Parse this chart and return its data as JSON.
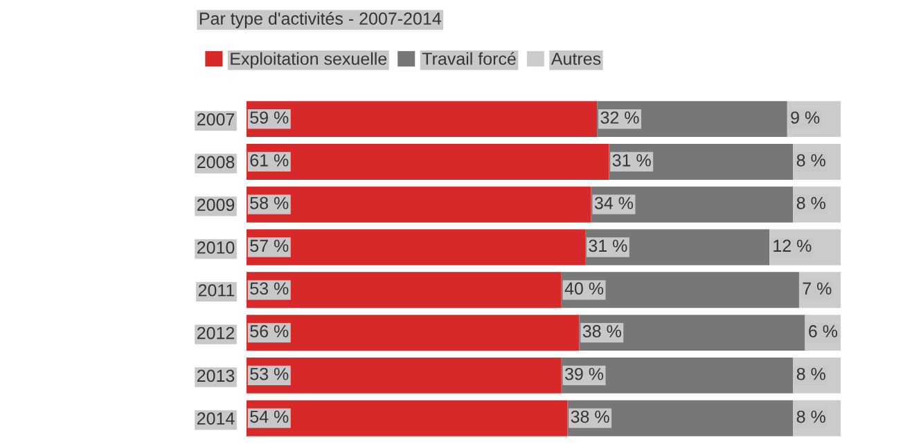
{
  "chart_data": {
    "type": "bar",
    "orientation": "horizontal",
    "stacked": true,
    "title": "Par type d'activités - 2007-2014",
    "categories": [
      "2007",
      "2008",
      "2009",
      "2010",
      "2011",
      "2012",
      "2013",
      "2014"
    ],
    "series": [
      {
        "name": "Exploitation sexuelle",
        "color": "#d7282a",
        "values": [
          59,
          61,
          58,
          57,
          53,
          56,
          53,
          54
        ],
        "value_labels": [
          "59 %",
          "61 %",
          "58 %",
          "57 %",
          "53 %",
          "56 %",
          "53 %",
          "54 %"
        ]
      },
      {
        "name": "Travail forcé",
        "color": "#777777",
        "values": [
          32,
          31,
          34,
          31,
          40,
          38,
          39,
          38
        ],
        "value_labels": [
          "32 %",
          "31 %",
          "34 %",
          "31 %",
          "40 %",
          "38 %",
          "39 %",
          "38 %"
        ]
      },
      {
        "name": "Autres",
        "color": "#cccccc",
        "values": [
          9,
          8,
          8,
          12,
          7,
          6,
          8,
          8
        ],
        "value_labels": [
          "9 %",
          "8 %",
          "8 %",
          "12 %",
          "7 %",
          "6 %",
          "8 %",
          "8 %"
        ]
      }
    ],
    "legend": "top left"
  }
}
